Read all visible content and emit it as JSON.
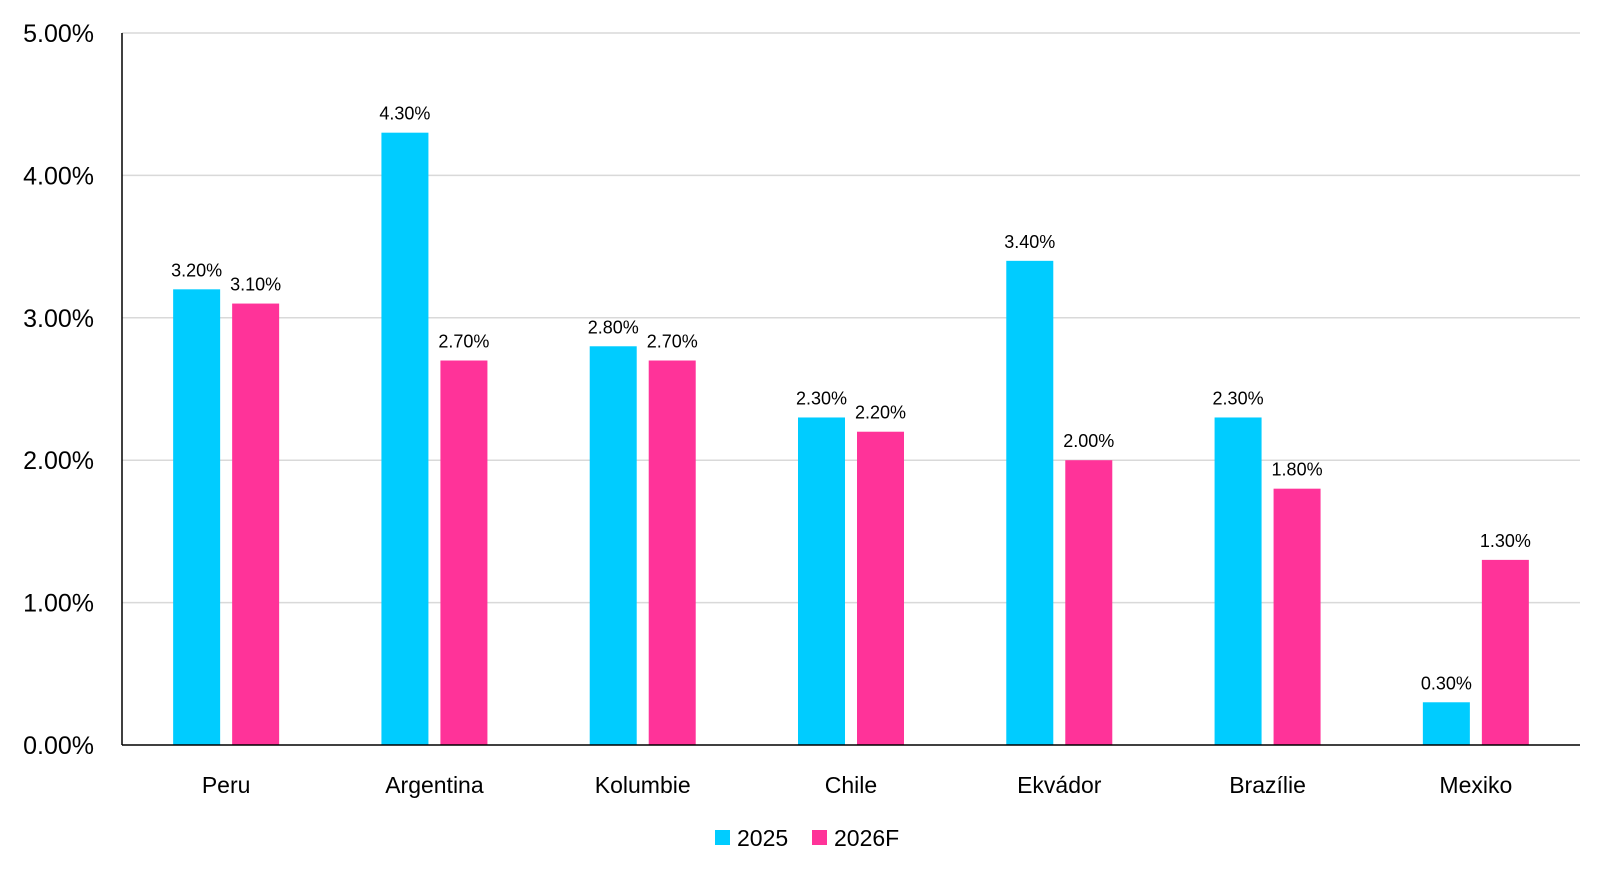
{
  "chart_data": {
    "type": "bar",
    "title": "",
    "xlabel": "",
    "ylabel": "",
    "categories": [
      "Peru",
      "Argentina",
      "Kolumbie",
      "Chile",
      "Ekvádor",
      "Brazílie",
      "Mexiko"
    ],
    "series": [
      {
        "name": "2025",
        "color": "#00CCFF",
        "values": [
          3.2,
          4.3,
          2.8,
          2.3,
          3.4,
          2.3,
          0.3
        ],
        "labels": [
          "3.20%",
          "4.30%",
          "2.80%",
          "2.30%",
          "3.40%",
          "2.30%",
          "0.30%"
        ]
      },
      {
        "name": "2026F",
        "color": "#FF3399",
        "values": [
          3.1,
          2.7,
          2.7,
          2.2,
          2.0,
          1.8,
          1.3
        ],
        "labels": [
          "3.10%",
          "2.70%",
          "2.70%",
          "2.20%",
          "2.00%",
          "1.80%",
          "1.30%"
        ]
      }
    ],
    "ylim": [
      0,
      5
    ],
    "yticks": [
      0,
      1,
      2,
      3,
      4,
      5
    ],
    "ytick_labels": [
      "0.00%",
      "1.00%",
      "2.00%",
      "3.00%",
      "4.00%",
      "5.00%"
    ],
    "grid": true,
    "legend_position": "bottom-center"
  }
}
